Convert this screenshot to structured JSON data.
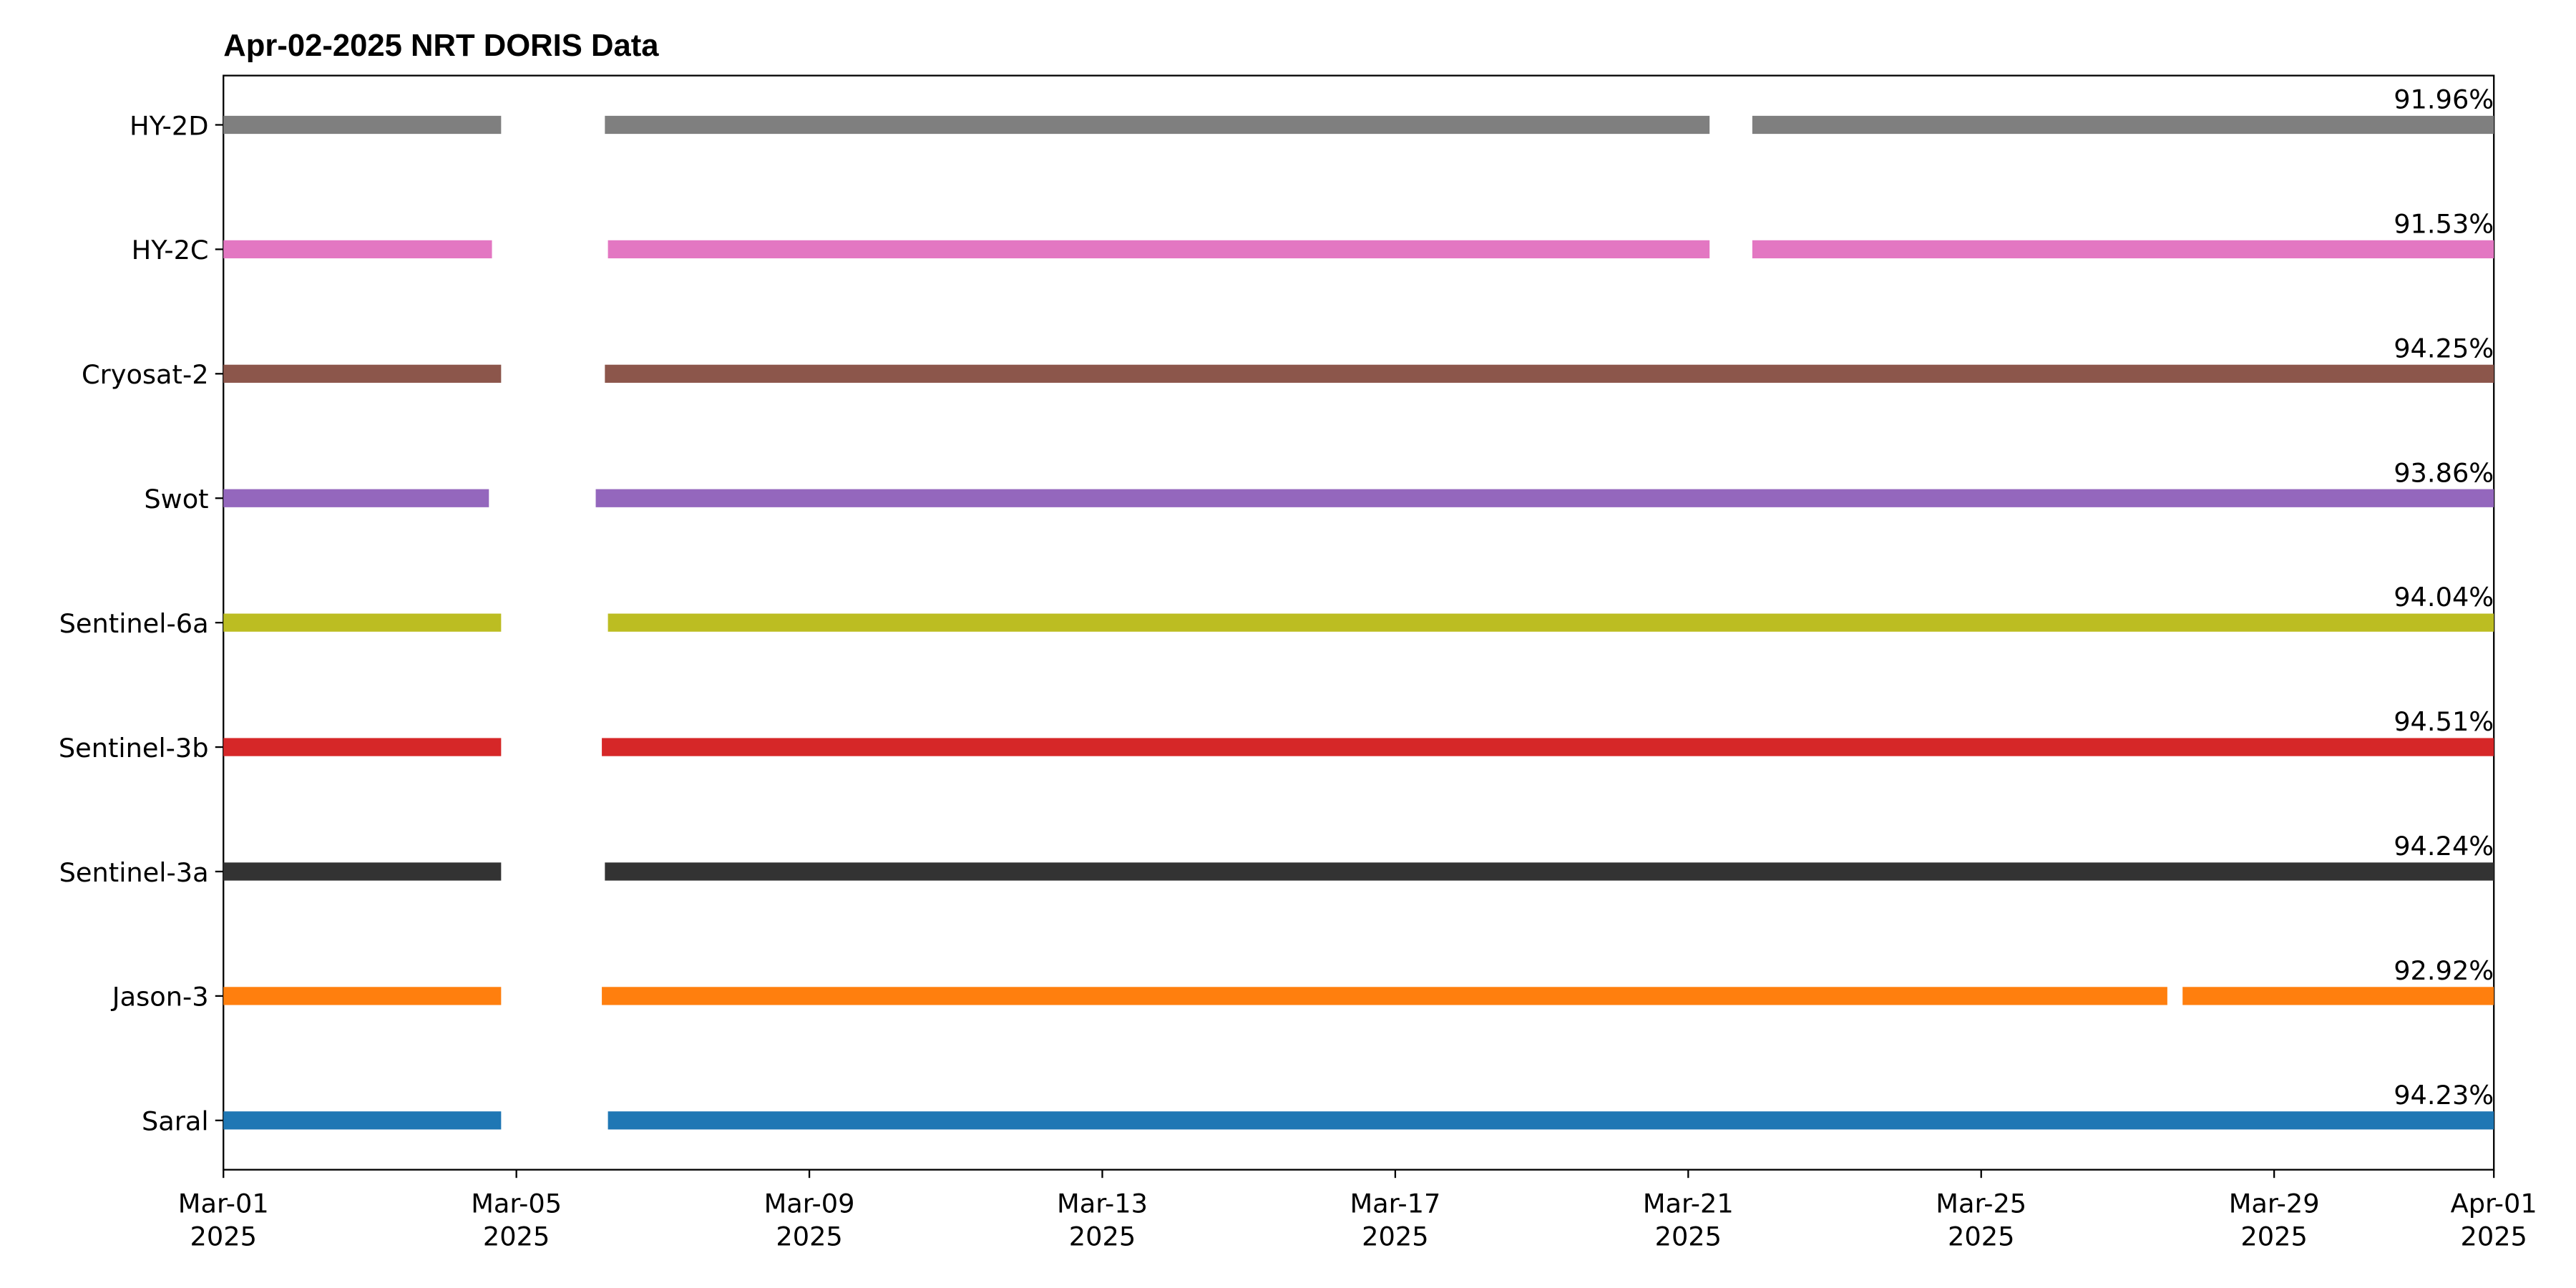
{
  "chart_data": {
    "type": "timeline",
    "title": "Apr-02-2025 NRT DORIS Data",
    "xlim": [
      "2025-03-01T00:00Z",
      "2025-04-01T00:00Z"
    ],
    "xticks": [
      {
        "value": "2025-03-01T00:00Z",
        "label": "Mar-01\n2025"
      },
      {
        "value": "2025-03-05T00:00Z",
        "label": "Mar-05\n2025"
      },
      {
        "value": "2025-03-09T00:00Z",
        "label": "Mar-09\n2025"
      },
      {
        "value": "2025-03-13T00:00Z",
        "label": "Mar-13\n2025"
      },
      {
        "value": "2025-03-17T00:00Z",
        "label": "Mar-17\n2025"
      },
      {
        "value": "2025-03-21T00:00Z",
        "label": "Mar-21\n2025"
      },
      {
        "value": "2025-03-25T00:00Z",
        "label": "Mar-25\n2025"
      },
      {
        "value": "2025-03-29T00:00Z",
        "label": "Mar-29\n2025"
      },
      {
        "value": "2025-04-01T00:00Z",
        "label": "Apr-01\n2025"
      }
    ],
    "series": [
      {
        "name": "Saral",
        "color": "#1f77b4",
        "coverage": 94.23,
        "coverage_label": "94.23%",
        "segments": [
          [
            "2025-03-01T00:00Z",
            "2025-03-04T19:00Z"
          ],
          [
            "2025-03-06T06:00Z",
            "2025-04-01T00:00Z"
          ]
        ]
      },
      {
        "name": "Jason-3",
        "color": "#ff7f0e",
        "coverage": 92.92,
        "coverage_label": "92.92%",
        "segments": [
          [
            "2025-03-01T00:00Z",
            "2025-03-04T19:00Z"
          ],
          [
            "2025-03-06T04:00Z",
            "2025-03-27T13:00Z"
          ],
          [
            "2025-03-27T18:00Z",
            "2025-04-01T00:00Z"
          ]
        ]
      },
      {
        "name": "Sentinel-3a",
        "color": "#333333",
        "coverage": 94.24,
        "coverage_label": "94.24%",
        "segments": [
          [
            "2025-03-01T00:00Z",
            "2025-03-04T19:00Z"
          ],
          [
            "2025-03-06T05:00Z",
            "2025-04-01T00:00Z"
          ]
        ]
      },
      {
        "name": "Sentinel-3b",
        "color": "#d62728",
        "coverage": 94.51,
        "coverage_label": "94.51%",
        "segments": [
          [
            "2025-03-01T00:00Z",
            "2025-03-04T19:00Z"
          ],
          [
            "2025-03-06T04:00Z",
            "2025-04-01T00:00Z"
          ]
        ]
      },
      {
        "name": "Sentinel-6a",
        "color": "#bcbd22",
        "coverage": 94.04,
        "coverage_label": "94.04%",
        "segments": [
          [
            "2025-03-01T00:00Z",
            "2025-03-04T19:00Z"
          ],
          [
            "2025-03-06T06:00Z",
            "2025-04-01T00:00Z"
          ]
        ]
      },
      {
        "name": "Swot",
        "color": "#9467bd",
        "coverage": 93.86,
        "coverage_label": "93.86%",
        "segments": [
          [
            "2025-03-01T00:00Z",
            "2025-03-04T15:00Z"
          ],
          [
            "2025-03-06T02:00Z",
            "2025-04-01T00:00Z"
          ]
        ]
      },
      {
        "name": "Cryosat-2",
        "color": "#8c564b",
        "coverage": 94.25,
        "coverage_label": "94.25%",
        "segments": [
          [
            "2025-03-01T00:00Z",
            "2025-03-04T19:00Z"
          ],
          [
            "2025-03-06T05:00Z",
            "2025-04-01T00:00Z"
          ]
        ]
      },
      {
        "name": "HY-2C",
        "color": "#e377c2",
        "coverage": 91.53,
        "coverage_label": "91.53%",
        "segments": [
          [
            "2025-03-01T00:00Z",
            "2025-03-04T16:00Z"
          ],
          [
            "2025-03-06T06:00Z",
            "2025-03-21T07:00Z"
          ],
          [
            "2025-03-21T21:00Z",
            "2025-04-01T00:00Z"
          ]
        ]
      },
      {
        "name": "HY-2D",
        "color": "#7f7f7f",
        "coverage": 91.96,
        "coverage_label": "91.96%",
        "segments": [
          [
            "2025-03-01T00:00Z",
            "2025-03-04T19:00Z"
          ],
          [
            "2025-03-06T05:00Z",
            "2025-03-21T07:00Z"
          ],
          [
            "2025-03-21T21:00Z",
            "2025-04-01T00:00Z"
          ]
        ]
      }
    ]
  }
}
